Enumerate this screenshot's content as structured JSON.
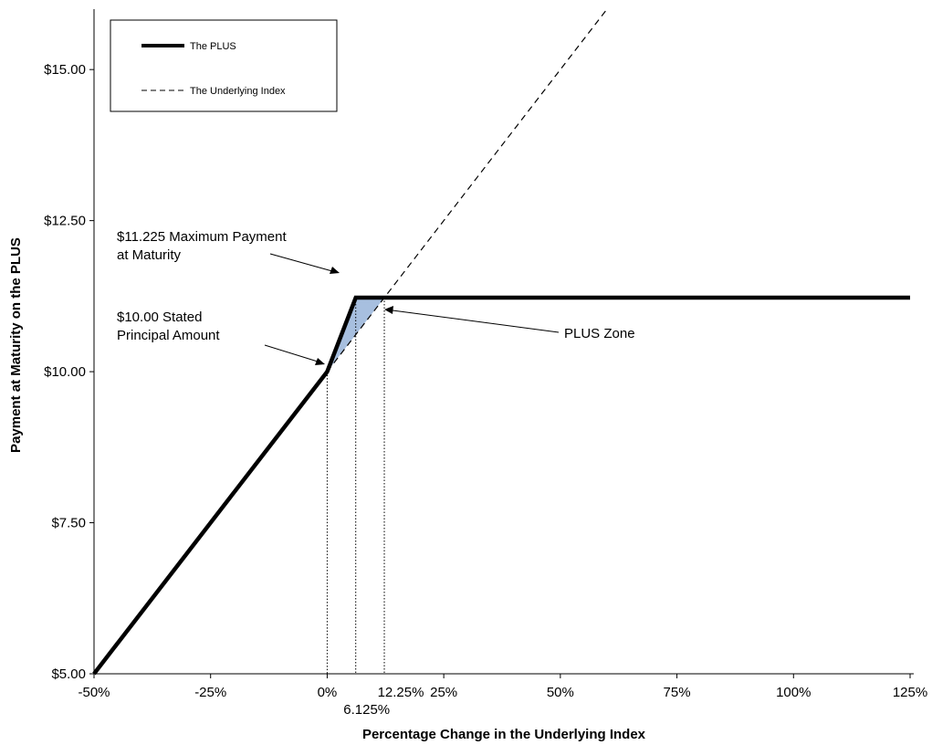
{
  "chart_data": {
    "type": "line",
    "xlabel": "Percentage Change in the Underlying Index",
    "ylabel": "Payment at Maturity on the PLUS",
    "xlim": [
      -50,
      125
    ],
    "ylim": [
      5,
      16
    ],
    "x_ticks": [
      -50,
      -25,
      0,
      25,
      50,
      75,
      100,
      125
    ],
    "x_tick_labels": [
      "-50%",
      "-25%",
      "0%",
      "25%",
      "50%",
      "75%",
      "100%",
      "125%"
    ],
    "y_ticks": [
      5,
      7.5,
      10,
      12.5,
      15
    ],
    "y_tick_labels": [
      "$5.00",
      "$7.50",
      "$10.00",
      "$12.50",
      "$15.00"
    ],
    "series": [
      {
        "name": "The PLUS",
        "style": "solid",
        "color": "#000000",
        "points": [
          [
            -50,
            5.0
          ],
          [
            0,
            10.0
          ],
          [
            6.125,
            11.225
          ],
          [
            125,
            11.225
          ]
        ]
      },
      {
        "name": "The Underlying Index",
        "style": "dashed",
        "color": "#000000",
        "points": [
          [
            0,
            10.0
          ],
          [
            60,
            16.0
          ]
        ]
      }
    ],
    "shaded_region": {
      "label": "PLUS Zone",
      "color": "#a7bfdf",
      "points": [
        [
          0,
          10.0
        ],
        [
          6.125,
          11.225
        ],
        [
          12.25,
          11.225
        ]
      ]
    },
    "guide_lines_x": [
      0,
      6.125,
      12.25
    ],
    "guide_labels": [
      {
        "x": 6.125,
        "text": "6.125%"
      },
      {
        "x": 12.25,
        "text": "12.25%"
      }
    ],
    "annotations": [
      {
        "lines": [
          "$11.225  Maximum Payment",
          "at Maturity"
        ],
        "target": [
          6.125,
          11.225
        ]
      },
      {
        "lines": [
          "$10.00  Stated",
          "Principal Amount"
        ],
        "target": [
          0,
          10.0
        ]
      },
      {
        "lines": [
          "PLUS Zone"
        ],
        "target": [
          9.5,
          10.95
        ]
      }
    ],
    "legend": {
      "position": "top-left",
      "entries": [
        {
          "label": "The PLUS",
          "style": "solid"
        },
        {
          "label": "The Underlying Index",
          "style": "dashed"
        }
      ]
    },
    "grid": false
  }
}
